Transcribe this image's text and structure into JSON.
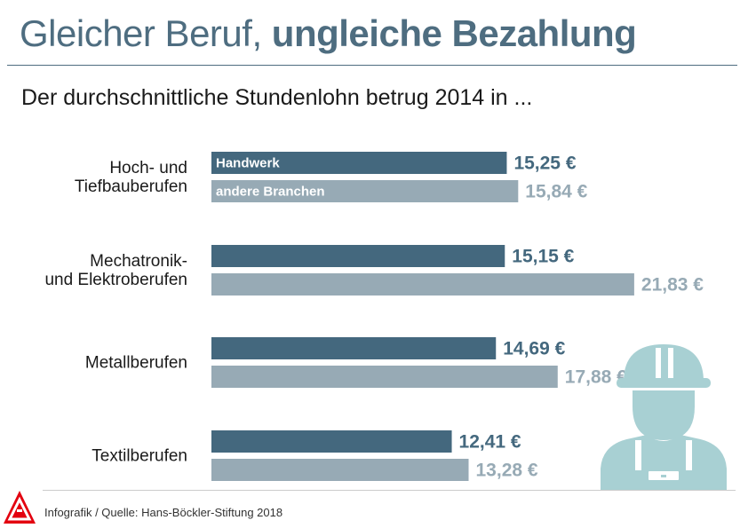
{
  "header": {
    "title_light": "Gleicher Beruf, ",
    "title_bold": "ungleiche Bezahlung",
    "subtitle": "Der durchschnittliche Stundenlohn betrug 2014 in ..."
  },
  "footer": {
    "source": "Infografik / Quelle: Hans-Böckler-Stiftung   2018"
  },
  "colors": {
    "title": "#4e6d80",
    "handwerk": "#44687e",
    "andere": "#97aab5",
    "illustration": "#a8d0d3",
    "logo": "#e3000f"
  },
  "icons": [
    "ig-metall-logo",
    "construction-worker-icon"
  ],
  "chart_data": {
    "type": "bar",
    "orientation": "horizontal",
    "categories": [
      [
        "Hoch- und",
        "Tiefbauberufen"
      ],
      [
        "Mechatronik-",
        "und Elektroberufen"
      ],
      [
        "Metallberufen"
      ],
      [
        "Textilberufen"
      ]
    ],
    "series": [
      {
        "name": "Handwerk",
        "values": [
          15.25,
          15.15,
          14.69,
          12.41
        ],
        "labels": [
          "15,25 €",
          "15,15 €",
          "14,69 €",
          "12,41 €"
        ]
      },
      {
        "name": "andere Branchen",
        "values": [
          15.84,
          21.83,
          17.88,
          13.28
        ],
        "labels": [
          "15,84 €",
          "21,83 €",
          "17,88 €",
          "13,28 €"
        ]
      }
    ],
    "xlim": [
      0,
      22
    ],
    "grid": false,
    "legend": "inside first bars"
  }
}
